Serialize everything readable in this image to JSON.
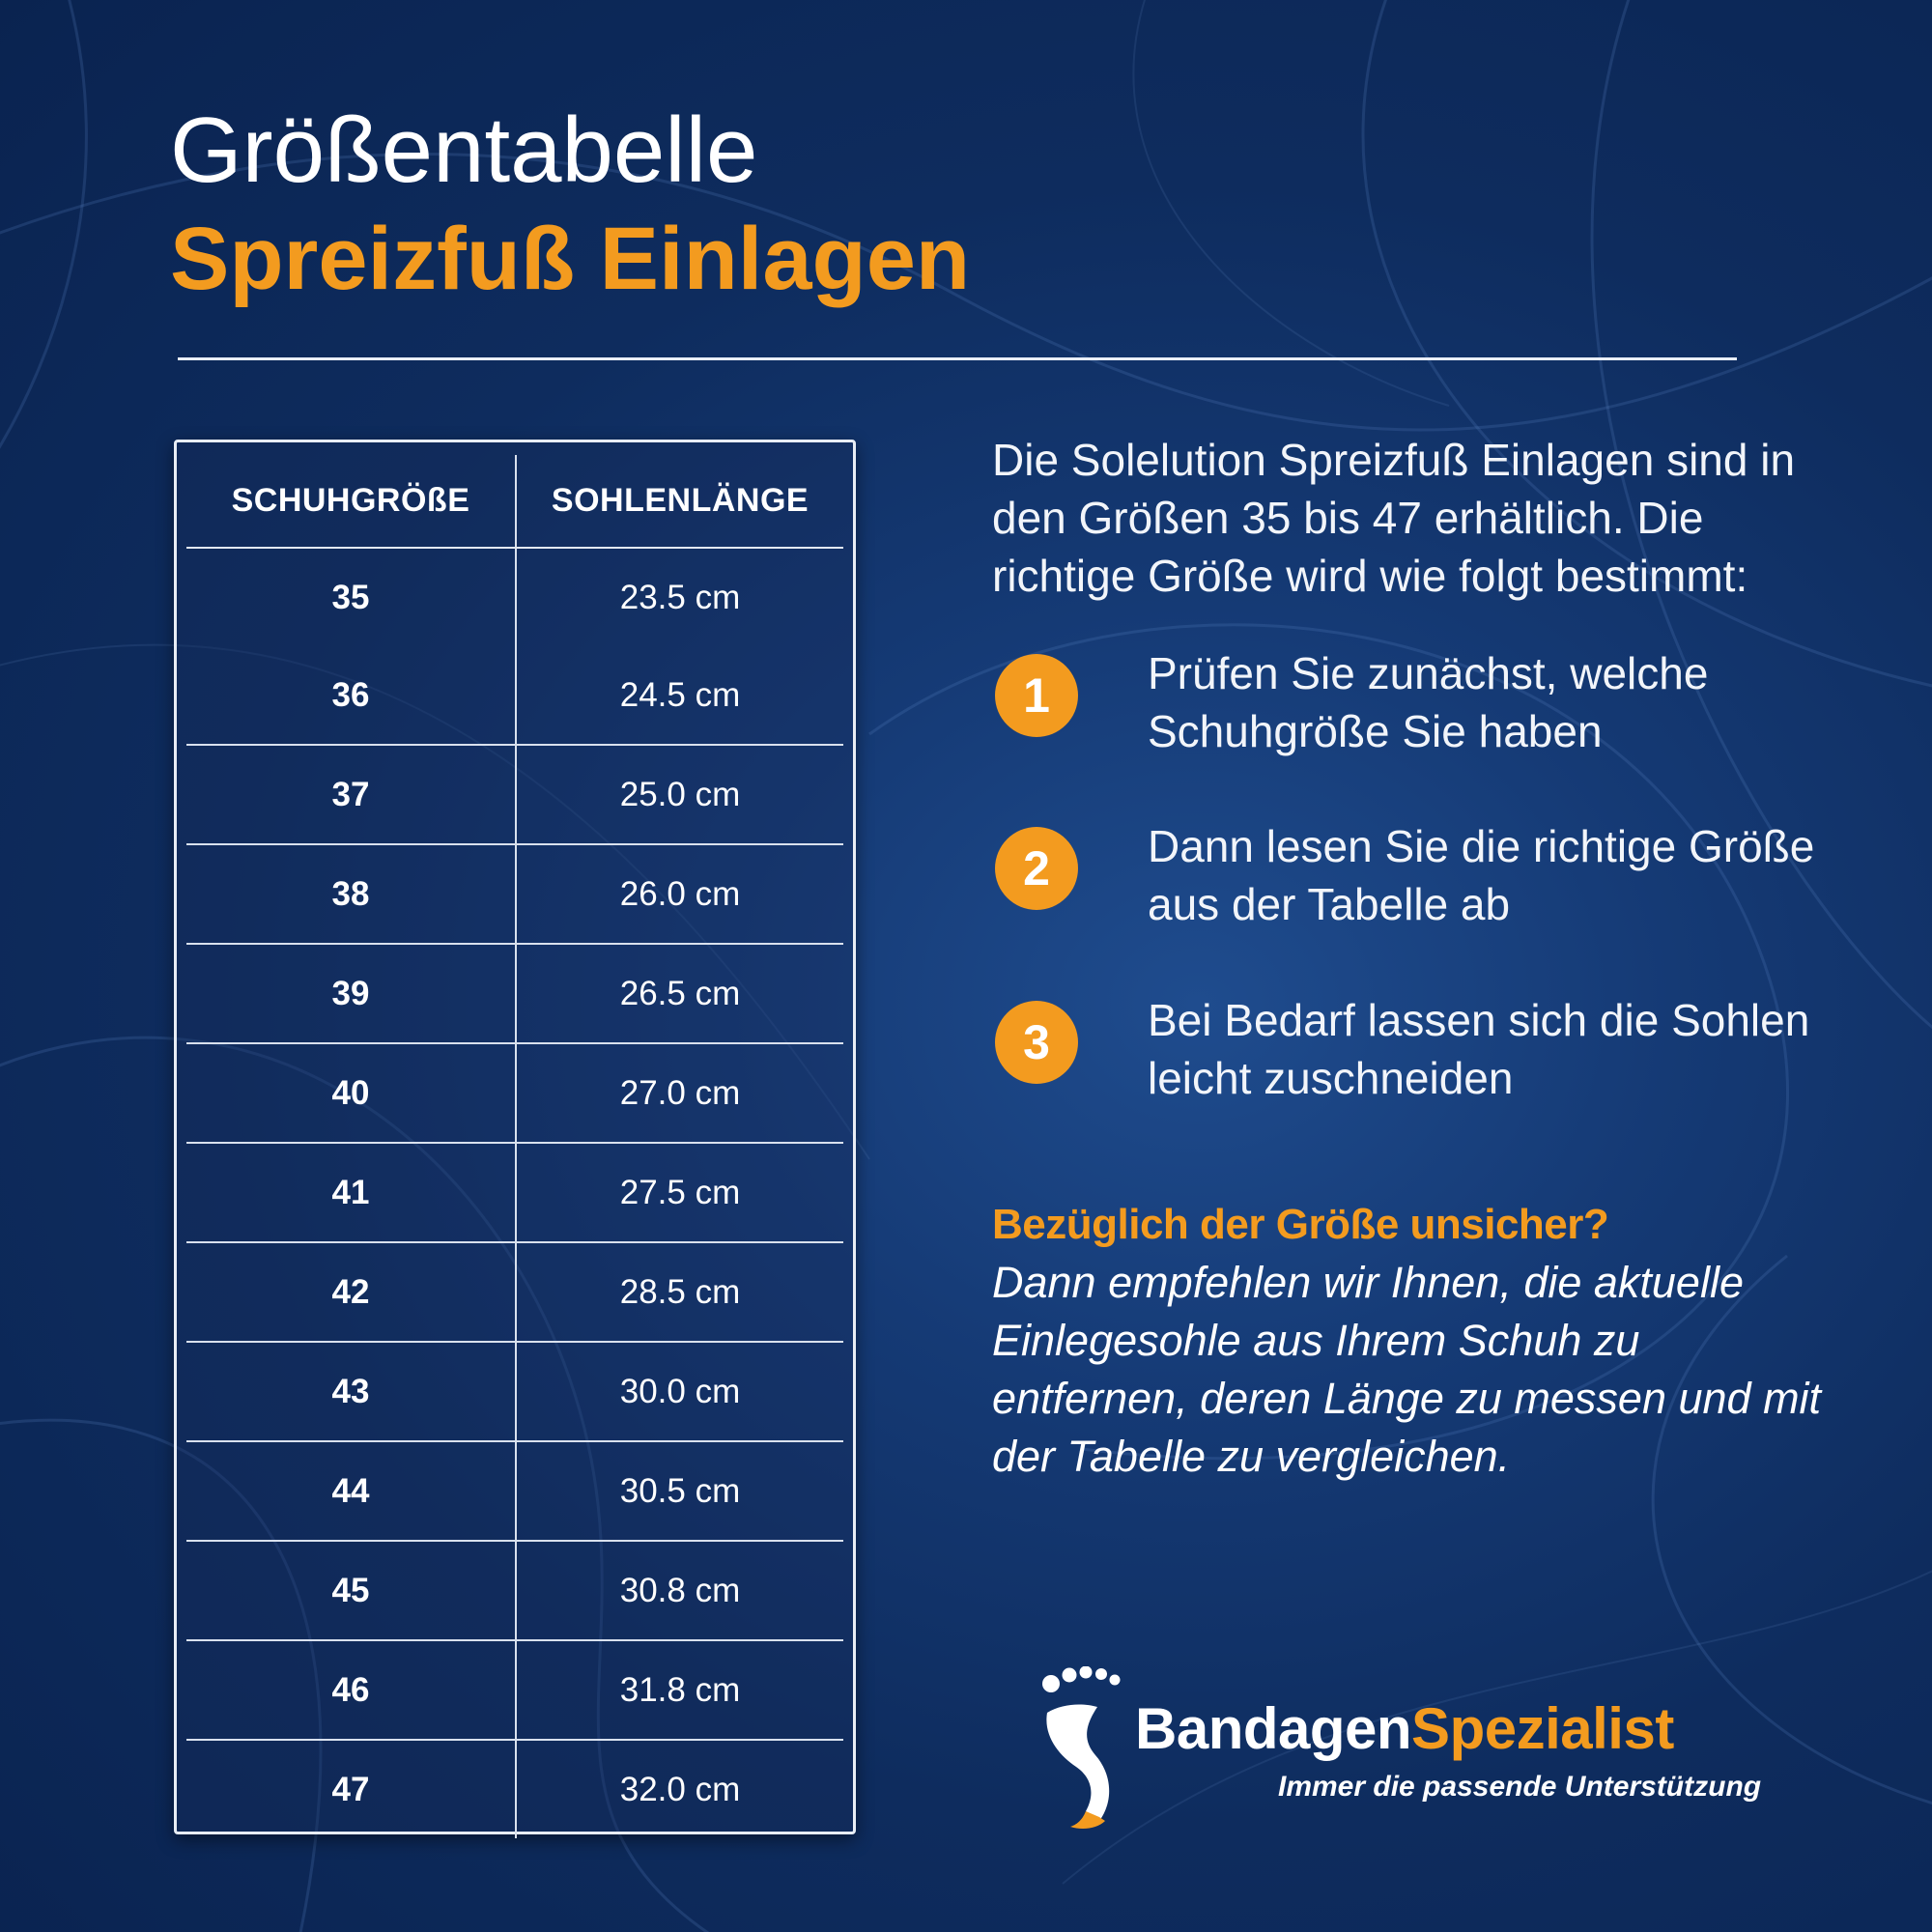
{
  "title": {
    "line1": "Größentabelle",
    "line2": "Spreizfuß Einlagen"
  },
  "table": {
    "headers": [
      "SCHUHGRÖßE",
      "SOHLENLÄNGE"
    ],
    "rows": [
      [
        "35",
        "23.5 cm"
      ],
      [
        "36",
        "24.5 cm"
      ],
      [
        "37",
        "25.0 cm"
      ],
      [
        "38",
        "26.0 cm"
      ],
      [
        "39",
        "26.5 cm"
      ],
      [
        "40",
        "27.0 cm"
      ],
      [
        "41",
        "27.5 cm"
      ],
      [
        "42",
        "28.5 cm"
      ],
      [
        "43",
        "30.0 cm"
      ],
      [
        "44",
        "30.5 cm"
      ],
      [
        "45",
        "30.8 cm"
      ],
      [
        "46",
        "31.8 cm"
      ],
      [
        "47",
        "32.0 cm"
      ]
    ]
  },
  "intro": "Die Solelution Spreizfuß Einlagen sind in den Größen 35 bis 47 erhältlich. Die richtige Größe wird wie folgt bestimmt:",
  "steps": [
    {
      "number": "1",
      "text": "Prüfen Sie zunächst, welche Schuhgröße Sie haben"
    },
    {
      "number": "2",
      "text": "Dann lesen Sie die richtige Größe aus der Tabelle ab"
    },
    {
      "number": "3",
      "text": "Bei Bedarf lassen sich die Sohlen leicht zuschneiden"
    }
  ],
  "faq": {
    "question": "Bezüglich der Größe unsicher?",
    "answer": "Dann empfehlen wir Ihnen, die aktuelle Einlegesohle aus Ihrem Schuh zu entfernen, deren Länge zu messen und mit der Tabelle zu vergleichen."
  },
  "logo": {
    "name_part1": "Bandagen",
    "name_part2": "Spezialist",
    "tagline": "Immer die passende Unterstützung",
    "icon": "footprint-icon"
  },
  "colors": {
    "accent": "#f39b1f",
    "background": "#0e2c5e",
    "text": "#ffffff"
  }
}
